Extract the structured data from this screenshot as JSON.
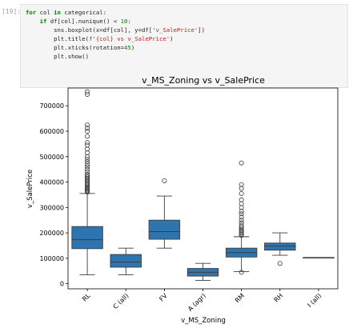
{
  "cell": {
    "prompt": "[19]:",
    "code_lines": [
      "for col in categorical:",
      "    if df[col].nunique() < 10:",
      "        sns.boxplot(x=df[col], y=df['v_SalePrice'])",
      "        plt.title(f'{col} vs v_SalePrice')",
      "        plt.xticks(rotation=45)",
      "        plt.show()"
    ]
  },
  "chart_data": {
    "type": "box",
    "title": "v_MS_Zoning vs v_SalePrice",
    "xlabel": "v_MS_Zoning",
    "ylabel": "v_SalePrice",
    "ylim": [
      -20000,
      770000
    ],
    "yticks": [
      0,
      100000,
      200000,
      300000,
      400000,
      500000,
      600000,
      700000
    ],
    "ytick_labels": [
      "0",
      "100000",
      "200000",
      "300000",
      "400000",
      "500000",
      "600000",
      "700000"
    ],
    "x_tick_rotation": 45,
    "box_color": "#2e75b0",
    "categories": [
      "RL",
      "C (all)",
      "FV",
      "A (agr)",
      "RM",
      "RH",
      "I (all)"
    ],
    "boxes": [
      {
        "q1": 138000,
        "median": 173000,
        "q3": 225000,
        "whislo": 35000,
        "whishi": 355000,
        "fliers": [
          360000,
          364000,
          368000,
          372000,
          376000,
          380000,
          385000,
          390000,
          395000,
          400000,
          405000,
          410000,
          415000,
          420000,
          425000,
          430000,
          440000,
          450000,
          460000,
          470000,
          480000,
          490000,
          500000,
          515000,
          530000,
          545000,
          555000,
          580000,
          600000,
          612000,
          625000,
          745000,
          755000
        ]
      },
      {
        "q1": 65000,
        "median": 85000,
        "q3": 115000,
        "whislo": 35000,
        "whishi": 140000,
        "fliers": []
      },
      {
        "q1": 175000,
        "median": 205000,
        "q3": 250000,
        "whislo": 140000,
        "whishi": 345000,
        "fliers": [
          405000
        ]
      },
      {
        "q1": 30000,
        "median": 45000,
        "q3": 60000,
        "whislo": 13000,
        "whishi": 80000,
        "fliers": []
      },
      {
        "q1": 105000,
        "median": 122000,
        "q3": 140000,
        "whislo": 48000,
        "whishi": 185000,
        "fliers": [
          45000,
          190000,
          195000,
          200000,
          205000,
          210000,
          215000,
          222000,
          230000,
          240000,
          250000,
          262000,
          275000,
          285000,
          300000,
          315000,
          330000,
          355000,
          375000,
          390000,
          475000
        ]
      },
      {
        "q1": 132000,
        "median": 148000,
        "q3": 160000,
        "whislo": 112000,
        "whishi": 200000,
        "fliers": [
          80000
        ]
      },
      {
        "q1": 103000,
        "median": 103000,
        "q3": 103000,
        "whislo": 103000,
        "whishi": 103000,
        "fliers": []
      }
    ]
  }
}
